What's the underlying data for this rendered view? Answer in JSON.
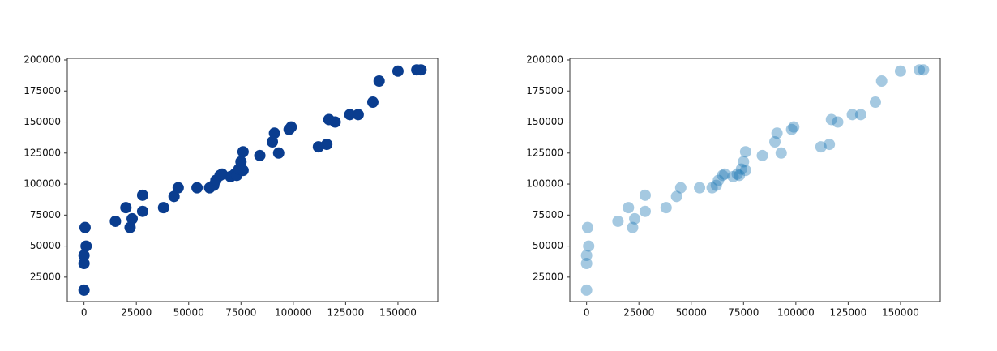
{
  "chart_data": [
    {
      "type": "scatter",
      "color": "#0a3d8f",
      "alpha": 1,
      "x": [
        0,
        0,
        0,
        1000,
        500,
        15000,
        20000,
        22000,
        23000,
        28000,
        28000,
        38000,
        43000,
        45000,
        54000,
        60000,
        62000,
        63000,
        65000,
        66000,
        70000,
        72000,
        73000,
        74000,
        75000,
        76000,
        76000,
        84000,
        90000,
        91000,
        93000,
        98000,
        99000,
        112000,
        116000,
        117000,
        120000,
        127000,
        131000,
        138000,
        141000,
        150000,
        159000,
        161000
      ],
      "values": [
        14500,
        36000,
        42500,
        50000,
        65000,
        70000,
        81000,
        65000,
        72000,
        78000,
        91000,
        81000,
        90000,
        97000,
        97000,
        97000,
        99000,
        103000,
        107000,
        108000,
        106000,
        108000,
        107000,
        112000,
        118000,
        111000,
        126000,
        123000,
        134000,
        141000,
        125000,
        144000,
        146000,
        130000,
        132000,
        152000,
        150000,
        156000,
        156000,
        166000,
        183000,
        191000,
        192000,
        192000
      ],
      "xlim": [
        -8000,
        169000
      ],
      "ylim": [
        5300,
        201300
      ],
      "xticks": [
        0,
        25000,
        50000,
        75000,
        100000,
        125000,
        150000
      ],
      "yticks": [
        25000,
        50000,
        75000,
        100000,
        125000,
        150000,
        175000,
        200000
      ]
    },
    {
      "type": "scatter",
      "color": "#1f77b4",
      "alpha": 0.4,
      "x": [
        0,
        0,
        0,
        1000,
        500,
        15000,
        20000,
        22000,
        23000,
        28000,
        28000,
        38000,
        43000,
        45000,
        54000,
        60000,
        62000,
        63000,
        65000,
        66000,
        70000,
        72000,
        73000,
        74000,
        75000,
        76000,
        76000,
        84000,
        90000,
        91000,
        93000,
        98000,
        99000,
        112000,
        116000,
        117000,
        120000,
        127000,
        131000,
        138000,
        141000,
        150000,
        159000,
        161000
      ],
      "values": [
        14500,
        36000,
        42500,
        50000,
        65000,
        70000,
        81000,
        65000,
        72000,
        78000,
        91000,
        81000,
        90000,
        97000,
        97000,
        97000,
        99000,
        103000,
        107000,
        108000,
        106000,
        108000,
        107000,
        112000,
        118000,
        111000,
        126000,
        123000,
        134000,
        141000,
        125000,
        144000,
        146000,
        130000,
        132000,
        152000,
        150000,
        156000,
        156000,
        166000,
        183000,
        191000,
        192000,
        192000
      ],
      "xlim": [
        -8000,
        169000
      ],
      "ylim": [
        5300,
        201300
      ],
      "xticks": [
        0,
        25000,
        50000,
        75000,
        100000,
        125000,
        150000
      ],
      "yticks": [
        25000,
        50000,
        75000,
        100000,
        125000,
        150000,
        175000,
        200000
      ]
    }
  ]
}
